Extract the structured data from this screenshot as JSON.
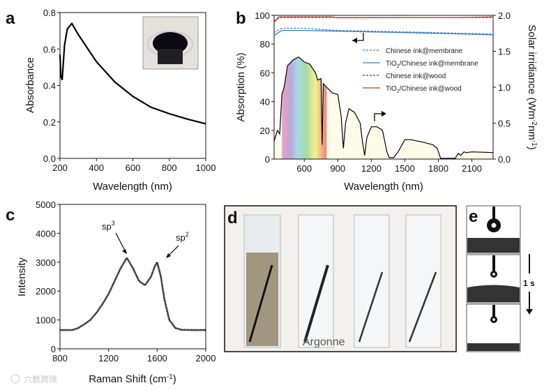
{
  "panel_labels": [
    "a",
    "b",
    "c",
    "d",
    "e"
  ],
  "watermark": "六数跨境",
  "time_label": "1 s",
  "colors": {
    "axis": "#111111",
    "curve": "#000000",
    "membrane": "#3a7fc0",
    "wood_dashed": "#444444",
    "wood_red": "#c0392b",
    "nir_fill": "#fbfbe8"
  },
  "chart_data": [
    {
      "type": "line",
      "panel": "a",
      "xlabel": "Wavelength (nm)",
      "ylabel": "Absorbance",
      "xlim": [
        200,
        1000
      ],
      "ylim": [
        0,
        0.8
      ],
      "xticks": [
        "200",
        "400",
        "600",
        "800",
        "1000"
      ],
      "yticks": [
        "0.0",
        "0.2",
        "0.4",
        "0.6",
        "0.8"
      ],
      "x": [
        200,
        205,
        212,
        225,
        240,
        265,
        300,
        400,
        500,
        600,
        700,
        800,
        900,
        1000
      ],
      "y": [
        0.57,
        0.45,
        0.43,
        0.62,
        0.71,
        0.74,
        0.68,
        0.53,
        0.42,
        0.34,
        0.28,
        0.245,
        0.215,
        0.19
      ],
      "inset": "photo of Chinese ink in beaker"
    },
    {
      "type": "line",
      "panel": "b",
      "xlabel": "Wavelength (nm)",
      "ylabel": "Absorption (%)",
      "y2label": "Solar irridiance (Wm-2nm-1)",
      "xlim": [
        330,
        2290
      ],
      "ylim": [
        0,
        100
      ],
      "y2lim": [
        0,
        2.0
      ],
      "xticks": [
        "600",
        "900",
        "1200",
        "1500",
        "1800",
        "2100"
      ],
      "yticks": [
        "0",
        "20",
        "40",
        "60",
        "80",
        "100"
      ],
      "y2ticks": [
        "0.0",
        "0.5",
        "1.0",
        "1.5",
        "2.0"
      ],
      "legend_position": "center-right",
      "series": [
        {
          "name": "Chinese ink@membrane",
          "style": "dashed",
          "color": "#3a7fc0",
          "x": [
            330,
            400,
            600,
            900,
            1500,
            2290
          ],
          "y": [
            88,
            91,
            91,
            89.5,
            88.5,
            87
          ]
        },
        {
          "name": "TiO2/Chinese ink@membrane",
          "style": "solid",
          "color": "#3a7fc0",
          "x": [
            330,
            400,
            600,
            900,
            1500,
            2290
          ],
          "y": [
            86,
            89.5,
            89.5,
            89,
            88,
            86.5
          ]
        },
        {
          "name": "Chinese ink@wood",
          "style": "dashed",
          "color": "#444444",
          "x": [
            330,
            380,
            900,
            2290
          ],
          "y": [
            96,
            98.5,
            98.5,
            98.5
          ]
        },
        {
          "name": "TiO2/Chinese ink@wood",
          "style": "solid",
          "color": "#c0392b",
          "x": [
            330,
            370,
            850,
            900,
            2000,
            2290
          ],
          "y": [
            95,
            99,
            99,
            98.3,
            98.5,
            99
          ]
        },
        {
          "name": "Solar irradiance",
          "axis": "right",
          "style": "solid",
          "color": "#000000",
          "x": [
            330,
            360,
            380,
            400,
            420,
            450,
            500,
            550,
            600,
            650,
            700,
            720,
            750,
            760,
            770,
            800,
            850,
            900,
            930,
            950,
            970,
            1000,
            1050,
            1100,
            1120,
            1140,
            1160,
            1200,
            1250,
            1300,
            1340,
            1360,
            1400,
            1440,
            1500,
            1550,
            1650,
            1750,
            1790,
            1820,
            1950,
            1980,
            2000,
            2030,
            2050,
            2100,
            2290
          ],
          "y": [
            0.25,
            0.4,
            0.35,
            0.9,
            1.0,
            1.3,
            1.38,
            1.42,
            1.35,
            1.32,
            1.2,
            1.1,
            1.12,
            0.2,
            1.05,
            1.0,
            0.92,
            0.9,
            0.6,
            0.15,
            0.5,
            0.7,
            0.65,
            0.5,
            0.25,
            0.05,
            0.3,
            0.45,
            0.45,
            0.4,
            0.1,
            0.02,
            0.02,
            0.1,
            0.27,
            0.27,
            0.24,
            0.2,
            0.15,
            0.01,
            0.01,
            0.08,
            0.05,
            0.1,
            0.09,
            0.1,
            0.09
          ]
        }
      ],
      "legend": [
        "Chinese ink@membrane",
        "TiO2/Chinese ink@membrane",
        "Chinese ink@wood",
        "TiO2/Chinese ink@wood"
      ],
      "legend_sub": {
        "prefix": "TiO",
        "sub": "2",
        "suffix": "/Chinese ink@membrane",
        "suffix2": "/Chinese ink@wood"
      }
    },
    {
      "type": "scatter",
      "panel": "c",
      "xlabel": "Raman Shift (cm-1)",
      "ylabel": "Intensity",
      "xlim": [
        800,
        2000
      ],
      "ylim": [
        0,
        5000
      ],
      "xticks": [
        "800",
        "1200",
        "1600",
        "2000"
      ],
      "yticks": [
        "0",
        "1000",
        "2000",
        "3000",
        "4000",
        "5000"
      ],
      "x": [
        800,
        900,
        950,
        1000,
        1050,
        1100,
        1150,
        1200,
        1250,
        1300,
        1350,
        1400,
        1450,
        1500,
        1550,
        1580,
        1600,
        1630,
        1660,
        1700,
        1750,
        1800,
        1900,
        2000
      ],
      "y": [
        650,
        650,
        720,
        850,
        1000,
        1250,
        1550,
        1900,
        2350,
        2800,
        3150,
        2800,
        2350,
        2200,
        2500,
        2850,
        3000,
        2500,
        1700,
        1000,
        720,
        660,
        650,
        650
      ],
      "annotations": [
        {
          "text": "sp",
          "sup": "3",
          "x": 1350
        },
        {
          "text": "sp",
          "sup": "2",
          "x": 1600
        }
      ]
    }
  ]
}
